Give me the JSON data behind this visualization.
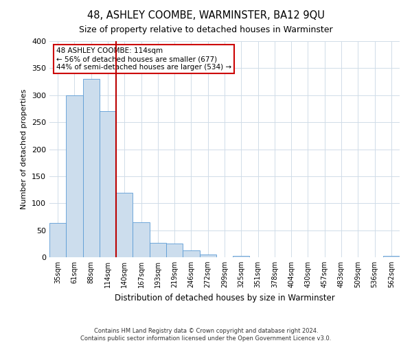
{
  "title": "48, ASHLEY COOMBE, WARMINSTER, BA12 9QU",
  "subtitle": "Size of property relative to detached houses in Warminster",
  "xlabel": "Distribution of detached houses by size in Warminster",
  "ylabel": "Number of detached properties",
  "bin_labels": [
    "35sqm",
    "61sqm",
    "88sqm",
    "114sqm",
    "140sqm",
    "167sqm",
    "193sqm",
    "219sqm",
    "246sqm",
    "272sqm",
    "299sqm",
    "325sqm",
    "351sqm",
    "378sqm",
    "404sqm",
    "430sqm",
    "457sqm",
    "483sqm",
    "509sqm",
    "536sqm",
    "562sqm"
  ],
  "bar_values": [
    63,
    300,
    330,
    270,
    120,
    65,
    27,
    25,
    13,
    5,
    0,
    2,
    0,
    0,
    0,
    0,
    0,
    0,
    0,
    0,
    2
  ],
  "bar_color": "#ccdded",
  "bar_edge_color": "#5b9bd5",
  "marker_index": 3,
  "marker_color": "#bb0000",
  "annotation_lines": [
    "48 ASHLEY COOMBE: 114sqm",
    "← 56% of detached houses are smaller (677)",
    "44% of semi-detached houses are larger (534) →"
  ],
  "annotation_box_color": "#cc0000",
  "ylim": [
    0,
    400
  ],
  "yticks": [
    0,
    50,
    100,
    150,
    200,
    250,
    300,
    350,
    400
  ],
  "footer_line1": "Contains HM Land Registry data © Crown copyright and database right 2024.",
  "footer_line2": "Contains public sector information licensed under the Open Government Licence v3.0.",
  "bg_color": "#ffffff",
  "grid_color": "#d0dce8"
}
